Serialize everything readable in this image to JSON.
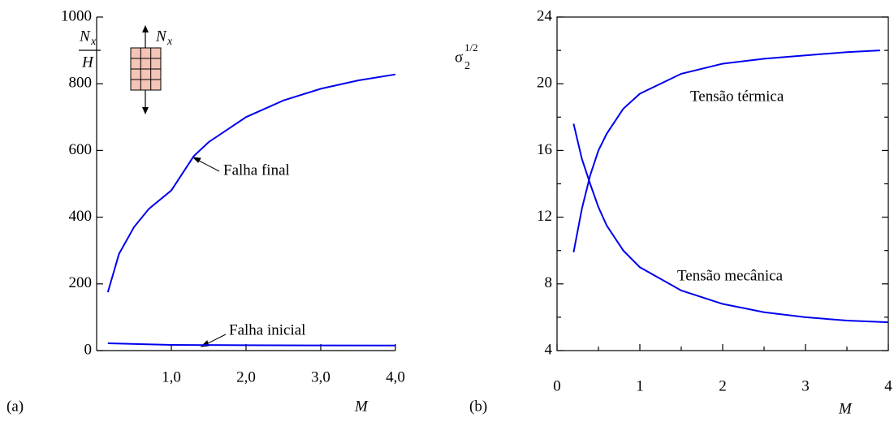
{
  "chart_data": [
    {
      "type": "line",
      "panel_label": "(a)",
      "xlabel": "M",
      "ylabel": {
        "symbol": "N",
        "subscript": "x",
        "denominator": "H"
      },
      "inset_label": {
        "symbol": "N",
        "subscript": "x"
      },
      "xlim": [
        0,
        4
      ],
      "ylim": [
        0,
        1000
      ],
      "xticks": [
        {
          "value": 1,
          "label": "1,0"
        },
        {
          "value": 2,
          "label": "2,0"
        },
        {
          "value": 3,
          "label": "3,0"
        },
        {
          "value": 4,
          "label": "4,0"
        }
      ],
      "yticks": [
        0,
        200,
        400,
        600,
        800,
        1000
      ],
      "series": [
        {
          "name": "Falha final",
          "color": "#0000ee",
          "x": [
            0.15,
            0.3,
            0.5,
            0.7,
            1.0,
            1.3,
            1.5,
            2.0,
            2.5,
            3.0,
            3.5,
            4.0
          ],
          "values": [
            175,
            290,
            370,
            425,
            480,
            583,
            625,
            700,
            750,
            785,
            810,
            828
          ]
        },
        {
          "name": "Falha inicial",
          "color": "#0000ee",
          "x": [
            0.15,
            1.0,
            2.0,
            4.0
          ],
          "values": [
            22,
            17,
            16,
            15
          ]
        }
      ]
    },
    {
      "type": "line",
      "panel_label": "(b)",
      "xlabel": "M",
      "ylabel": {
        "symbol": "σ",
        "subscript": "2",
        "superscript": "1/2"
      },
      "xlim": [
        0,
        4
      ],
      "ylim": [
        4,
        24
      ],
      "xticks": [
        0,
        1,
        2,
        3,
        4
      ],
      "xminor_ticks": [
        0.5,
        1.5,
        2.5,
        3.5
      ],
      "yticks": [
        4,
        8,
        12,
        16,
        20,
        24
      ],
      "yminor_ticks": [
        6,
        10,
        14,
        18,
        22
      ],
      "series": [
        {
          "name": "Tensão térmica",
          "color": "#0000ee",
          "x": [
            0.2,
            0.3,
            0.4,
            0.5,
            0.6,
            0.8,
            1.0,
            1.5,
            2.0,
            2.5,
            3.0,
            3.5,
            3.9
          ],
          "values": [
            9.9,
            12.5,
            14.5,
            16.0,
            17.0,
            18.5,
            19.4,
            20.6,
            21.2,
            21.5,
            21.7,
            21.9,
            22.0
          ]
        },
        {
          "name": "Tensão mecânica",
          "color": "#0000ee",
          "x": [
            0.2,
            0.3,
            0.4,
            0.5,
            0.6,
            0.8,
            1.0,
            1.5,
            2.0,
            2.5,
            3.0,
            3.5,
            4.0
          ],
          "values": [
            17.6,
            15.5,
            14.0,
            12.6,
            11.5,
            10.0,
            9.0,
            7.6,
            6.8,
            6.3,
            6.0,
            5.8,
            5.7
          ]
        }
      ]
    }
  ]
}
